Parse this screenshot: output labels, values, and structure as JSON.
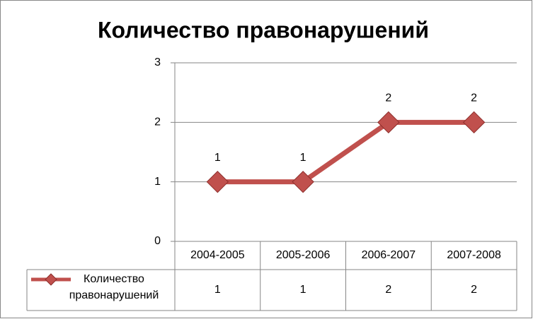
{
  "chart_data": {
    "type": "line",
    "title": "Количество правонарушений",
    "categories": [
      "2004-2005",
      "2005-2006",
      "2006-2007",
      "2007-2008"
    ],
    "series": [
      {
        "name": "Количество правонарушений",
        "color": "#c0504d",
        "values": [
          1,
          1,
          2,
          2
        ]
      }
    ],
    "ylim": [
      0,
      3
    ],
    "yticks": [
      0,
      1,
      2,
      3
    ],
    "grid": true,
    "data_table": true
  }
}
